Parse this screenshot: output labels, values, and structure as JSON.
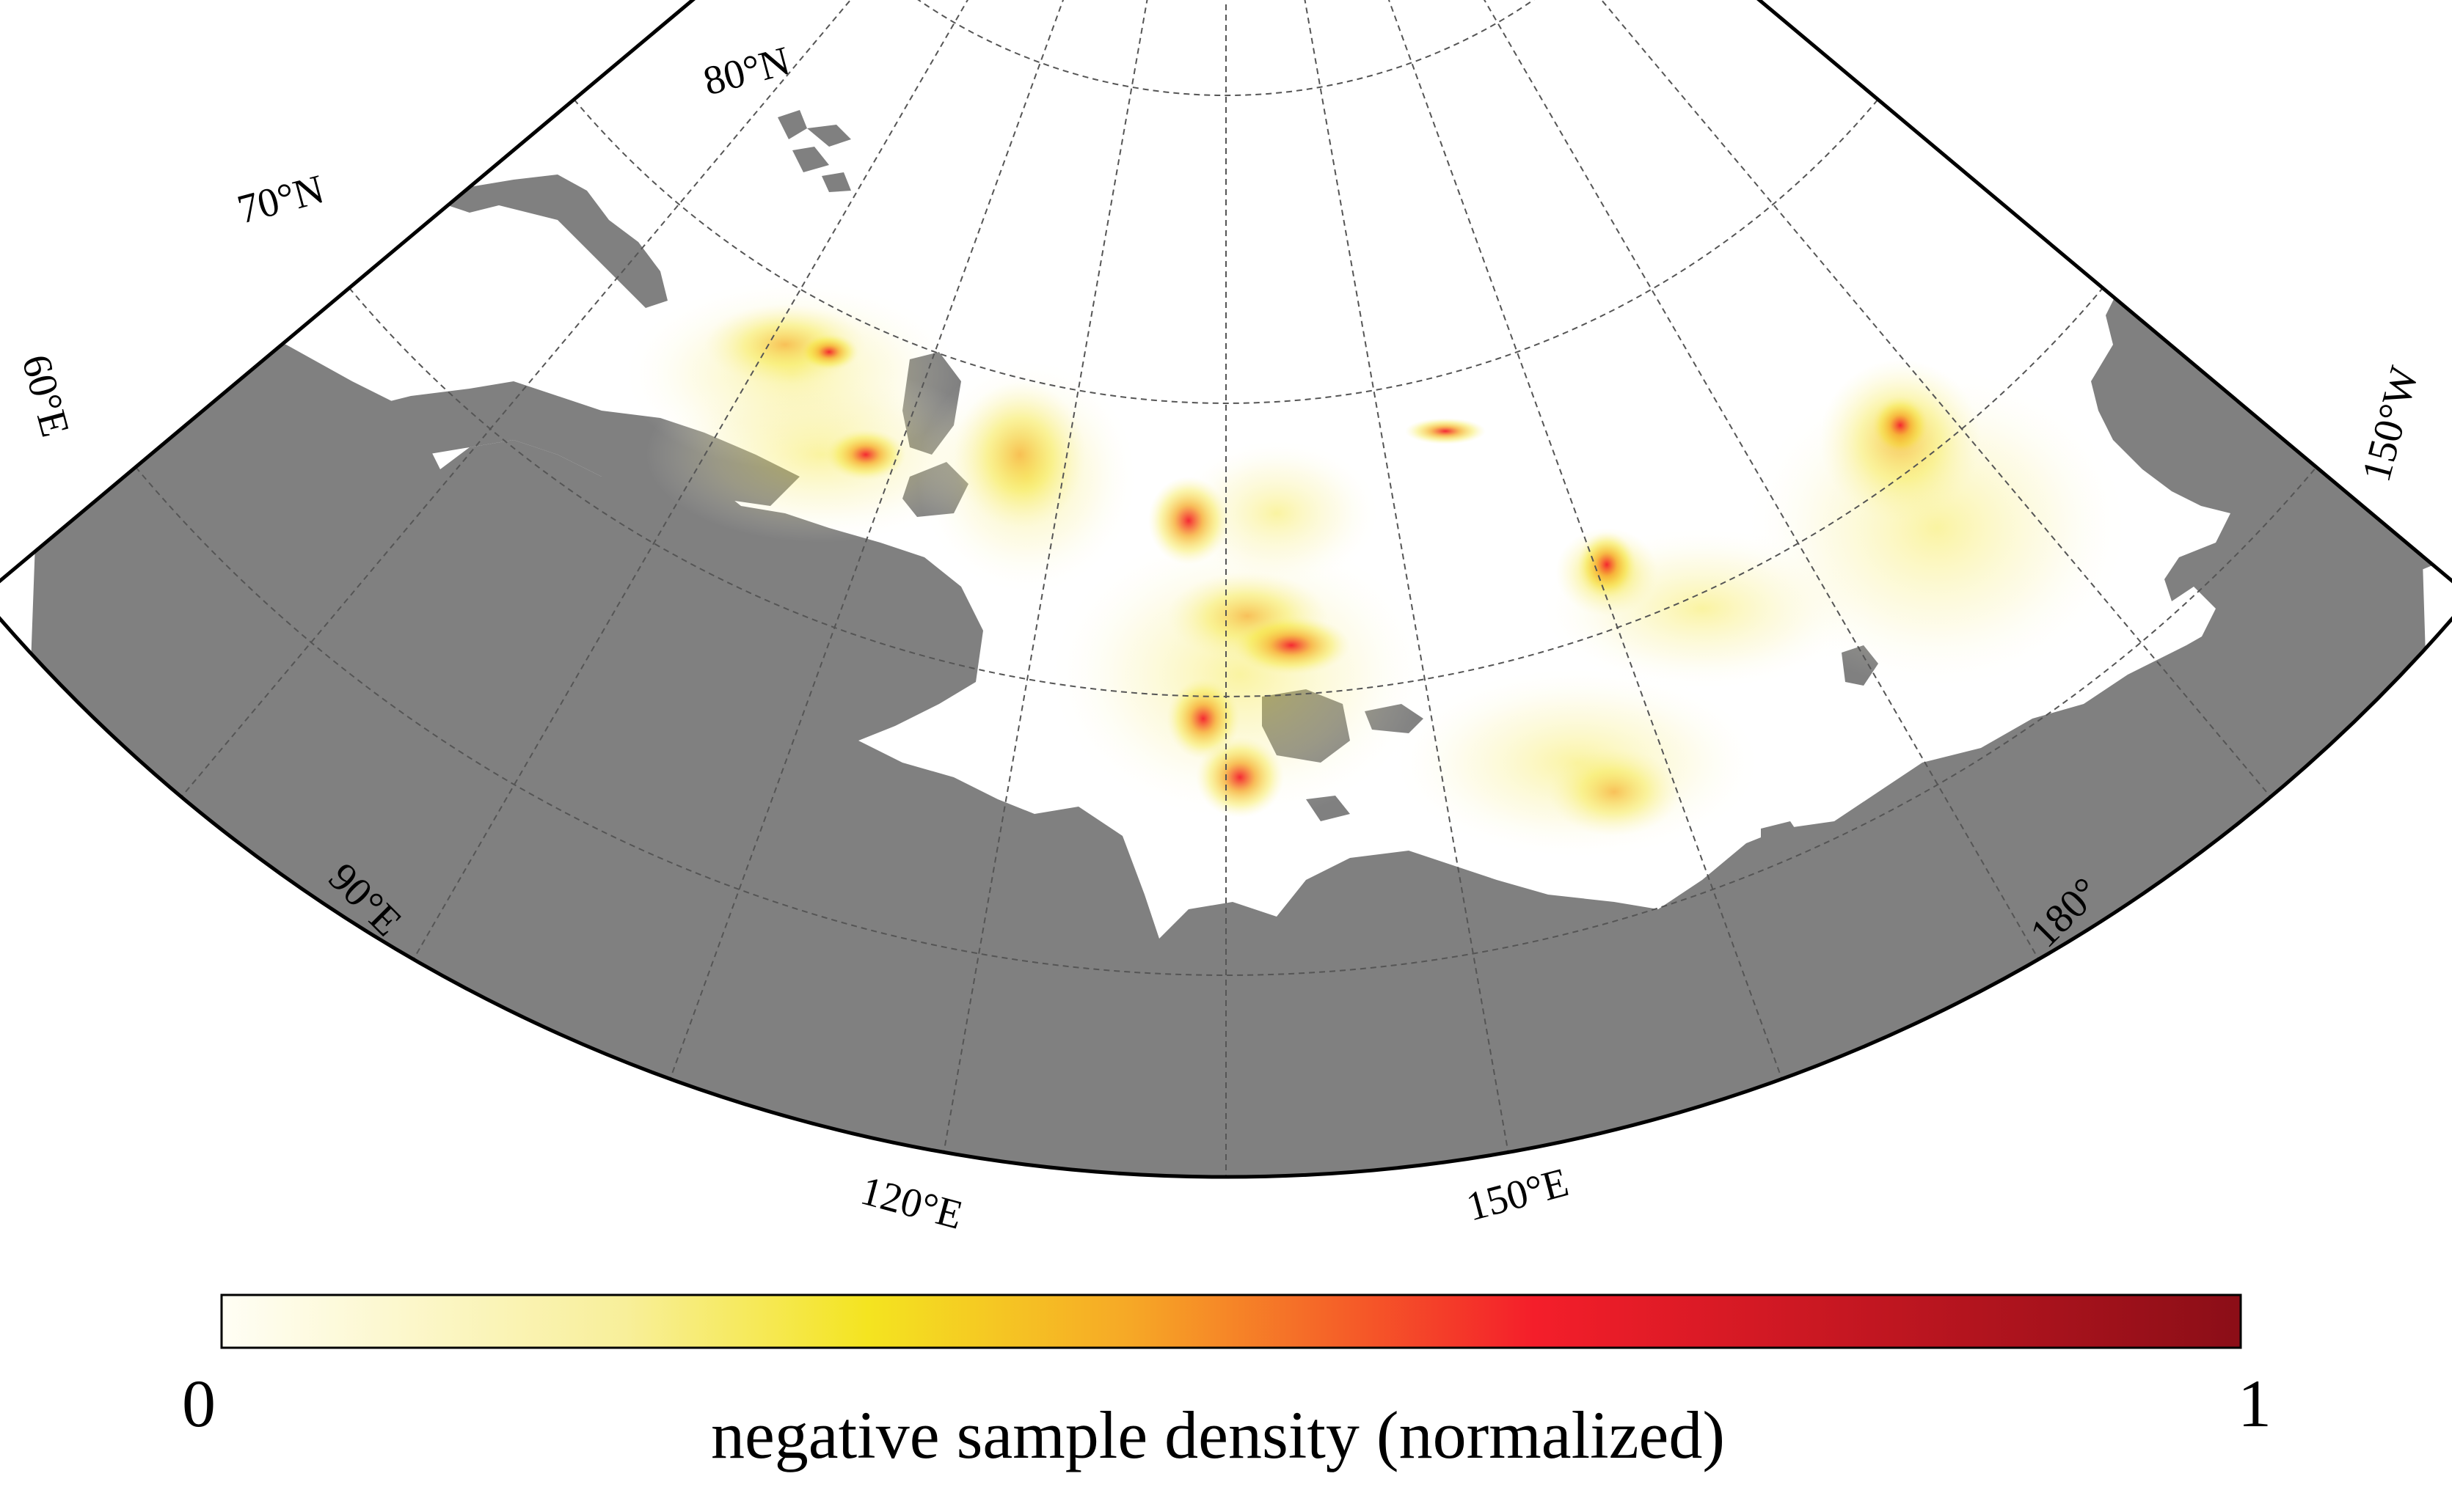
{
  "map": {
    "projection": "conic sector, Arctic",
    "land_color": "#808080",
    "ocean_color": "#ffffff",
    "graticule_color": "#555555",
    "latitude_labels": [
      "70°N",
      "80°N"
    ],
    "longitude_labels": [
      "60°E",
      "90°E",
      "120°E",
      "150°E",
      "180°",
      "150°W"
    ],
    "overlay": {
      "name": "negative sample density",
      "hotspots": [
        {
          "lon": 108,
          "lat": 77.5,
          "density": 0.85
        },
        {
          "lon": 112,
          "lat": 76.5,
          "density": 0.8
        },
        {
          "lon": 125,
          "lat": 77,
          "density": 0.9
        },
        {
          "lon": 134,
          "lat": 74,
          "density": 0.95
        },
        {
          "lon": 128,
          "lat": 72.5,
          "density": 0.9
        },
        {
          "lon": 130,
          "lat": 71.8,
          "density": 0.85
        },
        {
          "lon": 144,
          "lat": 79.2,
          "density": 0.8
        },
        {
          "lon": 160,
          "lat": 75.5,
          "density": 0.55
        },
        {
          "lon": 155,
          "lat": 71,
          "density": 0.35
        },
        {
          "lon": 178,
          "lat": 78,
          "density": 0.45
        }
      ]
    }
  },
  "colorbar": {
    "min_label": "0",
    "max_label": "1",
    "title": "negative sample density (normalized)",
    "colors": [
      "#fffef5",
      "#f8ef9a",
      "#f4e420",
      "#f6a826",
      "#f41e2a",
      "#8b0e17"
    ]
  }
}
